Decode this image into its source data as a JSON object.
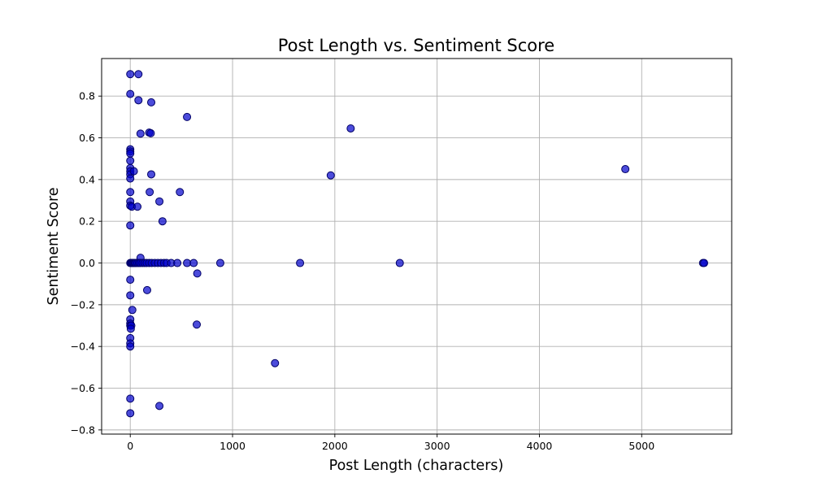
{
  "chart_data": {
    "type": "scatter",
    "title": "Post Length vs. Sentiment Score",
    "xlabel": "Post Length (characters)",
    "ylabel": "Sentiment Score",
    "xlim": [
      -280,
      5880
    ],
    "ylim": [
      -0.82,
      0.98
    ],
    "x_ticks": [
      0,
      1000,
      2000,
      3000,
      4000,
      5000
    ],
    "x_tick_labels": [
      "0",
      "1000",
      "2000",
      "3000",
      "4000",
      "5000"
    ],
    "y_ticks": [
      -0.8,
      -0.6,
      -0.4,
      -0.2,
      0.0,
      0.2,
      0.4,
      0.6,
      0.8
    ],
    "y_tick_labels": [
      "−0.8",
      "−0.6",
      "−0.4",
      "−0.2",
      "0.0",
      "0.2",
      "0.4",
      "0.6",
      "0.8"
    ],
    "grid": true,
    "marker_color": "#0000cc",
    "marker_edge_color": "#000066",
    "marker_opacity": 0.7,
    "points": [
      {
        "x": 0,
        "y": 0.905
      },
      {
        "x": 80,
        "y": 0.905
      },
      {
        "x": 0,
        "y": 0.81
      },
      {
        "x": 80,
        "y": 0.78
      },
      {
        "x": 205,
        "y": 0.77
      },
      {
        "x": 555,
        "y": 0.7
      },
      {
        "x": 2155,
        "y": 0.645
      },
      {
        "x": 100,
        "y": 0.62
      },
      {
        "x": 185,
        "y": 0.625
      },
      {
        "x": 200,
        "y": 0.622
      },
      {
        "x": 0,
        "y": 0.545
      },
      {
        "x": 0,
        "y": 0.535
      },
      {
        "x": 0,
        "y": 0.525
      },
      {
        "x": 0,
        "y": 0.49
      },
      {
        "x": 0,
        "y": 0.455
      },
      {
        "x": 0,
        "y": 0.44
      },
      {
        "x": 0,
        "y": 0.425
      },
      {
        "x": 35,
        "y": 0.44
      },
      {
        "x": 205,
        "y": 0.425
      },
      {
        "x": 0,
        "y": 0.405
      },
      {
        "x": 1960,
        "y": 0.42
      },
      {
        "x": 4840,
        "y": 0.45
      },
      {
        "x": 0,
        "y": 0.34
      },
      {
        "x": 190,
        "y": 0.34
      },
      {
        "x": 485,
        "y": 0.34
      },
      {
        "x": 0,
        "y": 0.295
      },
      {
        "x": 285,
        "y": 0.295
      },
      {
        "x": 0,
        "y": 0.275
      },
      {
        "x": 15,
        "y": 0.27
      },
      {
        "x": 70,
        "y": 0.27
      },
      {
        "x": 315,
        "y": 0.2
      },
      {
        "x": 0,
        "y": 0.18
      },
      {
        "x": 100,
        "y": 0.025
      },
      {
        "x": 0,
        "y": 0
      },
      {
        "x": 8,
        "y": 0
      },
      {
        "x": 15,
        "y": 0
      },
      {
        "x": 25,
        "y": 0
      },
      {
        "x": 35,
        "y": 0
      },
      {
        "x": 45,
        "y": 0
      },
      {
        "x": 55,
        "y": 0
      },
      {
        "x": 70,
        "y": 0
      },
      {
        "x": 85,
        "y": 0
      },
      {
        "x": 100,
        "y": 0
      },
      {
        "x": 120,
        "y": 0
      },
      {
        "x": 140,
        "y": 0
      },
      {
        "x": 160,
        "y": 0
      },
      {
        "x": 185,
        "y": 0
      },
      {
        "x": 210,
        "y": 0
      },
      {
        "x": 240,
        "y": 0
      },
      {
        "x": 270,
        "y": 0
      },
      {
        "x": 300,
        "y": 0
      },
      {
        "x": 330,
        "y": 0
      },
      {
        "x": 355,
        "y": 0
      },
      {
        "x": 400,
        "y": 0
      },
      {
        "x": 460,
        "y": 0
      },
      {
        "x": 555,
        "y": 0
      },
      {
        "x": 620,
        "y": 0
      },
      {
        "x": 880,
        "y": 0
      },
      {
        "x": 1660,
        "y": 0
      },
      {
        "x": 2635,
        "y": 0
      },
      {
        "x": 5600,
        "y": 0
      },
      {
        "x": 5610,
        "y": 0
      },
      {
        "x": 655,
        "y": -0.05
      },
      {
        "x": 0,
        "y": -0.08
      },
      {
        "x": 165,
        "y": -0.13
      },
      {
        "x": 0,
        "y": -0.155
      },
      {
        "x": 20,
        "y": -0.225
      },
      {
        "x": 0,
        "y": -0.27
      },
      {
        "x": 0,
        "y": -0.29
      },
      {
        "x": 0,
        "y": -0.3
      },
      {
        "x": 10,
        "y": -0.3
      },
      {
        "x": 5,
        "y": -0.315
      },
      {
        "x": 650,
        "y": -0.295
      },
      {
        "x": 0,
        "y": -0.36
      },
      {
        "x": 0,
        "y": -0.385
      },
      {
        "x": 0,
        "y": -0.4
      },
      {
        "x": 1415,
        "y": -0.48
      },
      {
        "x": 0,
        "y": -0.65
      },
      {
        "x": 285,
        "y": -0.685
      },
      {
        "x": 0,
        "y": -0.72
      }
    ]
  }
}
